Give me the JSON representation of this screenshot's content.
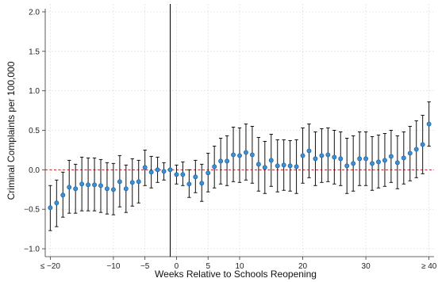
{
  "chart_data": {
    "type": "scatter",
    "xlabel": "Weeks Relative to Schools Reopening",
    "ylabel": "Criminal Complaints per 100,000",
    "xlim": [
      -20.8,
      40.8
    ],
    "ylim": [
      -1.1,
      2.1
    ],
    "x_ticks": [
      {
        "value": -20,
        "label": "≤ −20"
      },
      {
        "value": -10,
        "label": "−10"
      },
      {
        "value": -5,
        "label": "−5"
      },
      {
        "value": 0,
        "label": "0"
      },
      {
        "value": 5,
        "label": "5"
      },
      {
        "value": 10,
        "label": "10"
      },
      {
        "value": 20,
        "label": "20"
      },
      {
        "value": 30,
        "label": "30"
      },
      {
        "value": 40,
        "label": "≥ 40"
      }
    ],
    "y_ticks": [
      {
        "value": -1.0,
        "label": "−1.0"
      },
      {
        "value": -0.5,
        "label": "−0.5"
      },
      {
        "value": 0.0,
        "label": "0.0"
      },
      {
        "value": 0.5,
        "label": "0.5"
      },
      {
        "value": 1.0,
        "label": "1.0"
      },
      {
        "value": 1.5,
        "label": "1.5"
      },
      {
        "value": 2.0,
        "label": "2.0"
      }
    ],
    "grid": true,
    "reference_line_y": 0,
    "event_line_x": -1,
    "colors": {
      "point": "#3b8fd4",
      "point_edge": "#1f5f9e",
      "ci": "#111111",
      "zero_line": "#cc2222",
      "grid": "#d9d9d9"
    },
    "points": [
      {
        "x": -20,
        "y": -0.48,
        "lo": -0.77,
        "hi": -0.2
      },
      {
        "x": -19,
        "y": -0.42,
        "lo": -0.72,
        "hi": -0.13
      },
      {
        "x": -18,
        "y": -0.32,
        "lo": -0.6,
        "hi": -0.03
      },
      {
        "x": -17,
        "y": -0.22,
        "lo": -0.55,
        "hi": 0.12
      },
      {
        "x": -16,
        "y": -0.24,
        "lo": -0.55,
        "hi": 0.07
      },
      {
        "x": -15,
        "y": -0.18,
        "lo": -0.52,
        "hi": 0.16
      },
      {
        "x": -14,
        "y": -0.19,
        "lo": -0.52,
        "hi": 0.15
      },
      {
        "x": -13,
        "y": -0.19,
        "lo": -0.52,
        "hi": 0.15
      },
      {
        "x": -12,
        "y": -0.2,
        "lo": -0.54,
        "hi": 0.13
      },
      {
        "x": -11,
        "y": -0.24,
        "lo": -0.56,
        "hi": 0.09
      },
      {
        "x": -10,
        "y": -0.25,
        "lo": -0.57,
        "hi": 0.08
      },
      {
        "x": -9,
        "y": -0.15,
        "lo": -0.47,
        "hi": 0.18
      },
      {
        "x": -8,
        "y": -0.24,
        "lo": -0.54,
        "hi": 0.06
      },
      {
        "x": -7,
        "y": -0.16,
        "lo": -0.46,
        "hi": 0.14
      },
      {
        "x": -6,
        "y": -0.15,
        "lo": -0.42,
        "hi": 0.12
      },
      {
        "x": -5,
        "y": 0.03,
        "lo": -0.2,
        "hi": 0.25
      },
      {
        "x": -4,
        "y": -0.03,
        "lo": -0.23,
        "hi": 0.17
      },
      {
        "x": -3,
        "y": 0.0,
        "lo": -0.16,
        "hi": 0.16
      },
      {
        "x": -2,
        "y": -0.02,
        "lo": -0.13,
        "hi": 0.09
      },
      {
        "x": -1,
        "y": 0.0,
        "lo": 0.0,
        "hi": 0.0
      },
      {
        "x": 0,
        "y": -0.06,
        "lo": -0.18,
        "hi": 0.06
      },
      {
        "x": 1,
        "y": -0.06,
        "lo": -0.2,
        "hi": 0.1
      },
      {
        "x": 2,
        "y": -0.18,
        "lo": -0.35,
        "hi": 0.0
      },
      {
        "x": 3,
        "y": -0.09,
        "lo": -0.29,
        "hi": 0.12
      },
      {
        "x": 4,
        "y": -0.17,
        "lo": -0.4,
        "hi": 0.07
      },
      {
        "x": 5,
        "y": -0.04,
        "lo": -0.28,
        "hi": 0.21
      },
      {
        "x": 6,
        "y": 0.04,
        "lo": -0.23,
        "hi": 0.3
      },
      {
        "x": 7,
        "y": 0.11,
        "lo": -0.18,
        "hi": 0.4
      },
      {
        "x": 8,
        "y": 0.11,
        "lo": -0.2,
        "hi": 0.43
      },
      {
        "x": 9,
        "y": 0.19,
        "lo": -0.15,
        "hi": 0.54
      },
      {
        "x": 10,
        "y": 0.18,
        "lo": -0.16,
        "hi": 0.53
      },
      {
        "x": 11,
        "y": 0.22,
        "lo": -0.13,
        "hi": 0.58
      },
      {
        "x": 12,
        "y": 0.19,
        "lo": -0.17,
        "hi": 0.55
      },
      {
        "x": 13,
        "y": 0.07,
        "lo": -0.27,
        "hi": 0.41
      },
      {
        "x": 14,
        "y": 0.03,
        "lo": -0.3,
        "hi": 0.36
      },
      {
        "x": 15,
        "y": 0.12,
        "lo": -0.21,
        "hi": 0.45
      },
      {
        "x": 16,
        "y": 0.05,
        "lo": -0.28,
        "hi": 0.38
      },
      {
        "x": 17,
        "y": 0.06,
        "lo": -0.26,
        "hi": 0.38
      },
      {
        "x": 18,
        "y": 0.05,
        "lo": -0.27,
        "hi": 0.37
      },
      {
        "x": 19,
        "y": 0.04,
        "lo": -0.3,
        "hi": 0.38
      },
      {
        "x": 20,
        "y": 0.18,
        "lo": -0.17,
        "hi": 0.53
      },
      {
        "x": 21,
        "y": 0.24,
        "lo": -0.1,
        "hi": 0.58
      },
      {
        "x": 22,
        "y": 0.14,
        "lo": -0.2,
        "hi": 0.48
      },
      {
        "x": 23,
        "y": 0.18,
        "lo": -0.16,
        "hi": 0.52
      },
      {
        "x": 24,
        "y": 0.19,
        "lo": -0.15,
        "hi": 0.53
      },
      {
        "x": 25,
        "y": 0.16,
        "lo": -0.18,
        "hi": 0.5
      },
      {
        "x": 26,
        "y": 0.14,
        "lo": -0.2,
        "hi": 0.48
      },
      {
        "x": 27,
        "y": 0.05,
        "lo": -0.3,
        "hi": 0.4
      },
      {
        "x": 28,
        "y": 0.08,
        "lo": -0.27,
        "hi": 0.43
      },
      {
        "x": 29,
        "y": 0.14,
        "lo": -0.2,
        "hi": 0.48
      },
      {
        "x": 30,
        "y": 0.14,
        "lo": -0.2,
        "hi": 0.48
      },
      {
        "x": 31,
        "y": 0.08,
        "lo": -0.26,
        "hi": 0.42
      },
      {
        "x": 32,
        "y": 0.1,
        "lo": -0.23,
        "hi": 0.44
      },
      {
        "x": 33,
        "y": 0.12,
        "lo": -0.21,
        "hi": 0.46
      },
      {
        "x": 34,
        "y": 0.17,
        "lo": -0.16,
        "hi": 0.5
      },
      {
        "x": 35,
        "y": 0.09,
        "lo": -0.24,
        "hi": 0.43
      },
      {
        "x": 36,
        "y": 0.15,
        "lo": -0.18,
        "hi": 0.48
      },
      {
        "x": 37,
        "y": 0.21,
        "lo": -0.14,
        "hi": 0.55
      },
      {
        "x": 38,
        "y": 0.26,
        "lo": -0.1,
        "hi": 0.62
      },
      {
        "x": 39,
        "y": 0.32,
        "lo": -0.05,
        "hi": 0.69
      },
      {
        "x": 40,
        "y": 0.58,
        "lo": 0.3,
        "hi": 0.86
      }
    ]
  }
}
